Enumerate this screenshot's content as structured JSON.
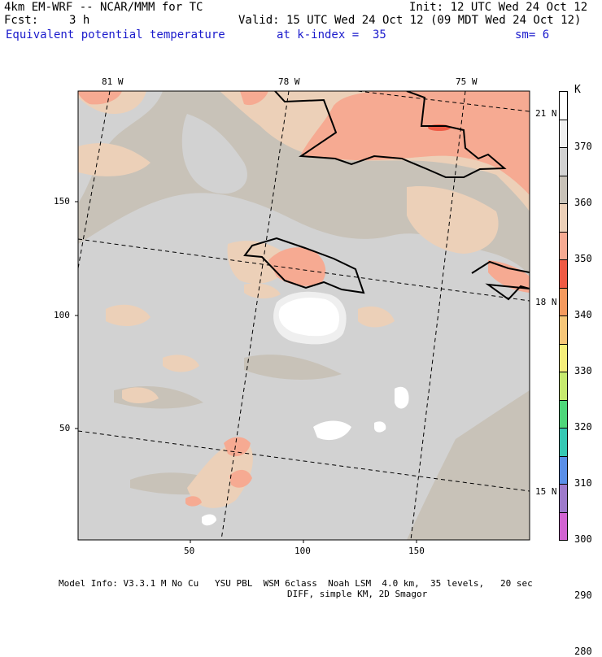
{
  "header": {
    "model": "4km EM-WRF -- NCAR/MMM for TC",
    "init": "Init: 12 UTC Wed 24 Oct 12",
    "fcst_label": "Fcst:",
    "fcst_value": "3 h",
    "valid": "Valid: 15 UTC Wed 24 Oct 12 (09 MDT Wed 24 Oct 12)",
    "field": "Equivalent potential temperature",
    "k_index": "at k-index =  35",
    "smoothing": "sm= 6"
  },
  "axes": {
    "x_ticks": [
      "50",
      "100",
      "150"
    ],
    "y_ticks": [
      "150",
      "100",
      "50"
    ],
    "lon_labels": [
      "81 W",
      "78 W",
      "75 W"
    ],
    "lat_labels": [
      "21 N",
      "18 N",
      "15 N"
    ]
  },
  "colorbar": {
    "unit": "K",
    "levels": [
      "370",
      "360",
      "350",
      "340",
      "330",
      "320",
      "310",
      "300",
      "290",
      "280"
    ],
    "colors": [
      "#ffffff",
      "#efefef",
      "#d2d2d2",
      "#c8c2b8",
      "#ecd0b8",
      "#f6aa92",
      "#ef5a44",
      "#f59a5e",
      "#f6c678",
      "#f5ee7a",
      "#c6ea6e",
      "#4ed67a",
      "#36c9b4",
      "#5a8fe8",
      "#9e7acb",
      "#d264d2"
    ]
  },
  "footer": {
    "line1": "Model Info: V3.3.1 M No Cu   YSU PBL  WSM 6class  Noah LSM  4.0 km,  35 levels,   20 sec",
    "line2": "DIFF, simple KM, 2D Smagor"
  }
}
